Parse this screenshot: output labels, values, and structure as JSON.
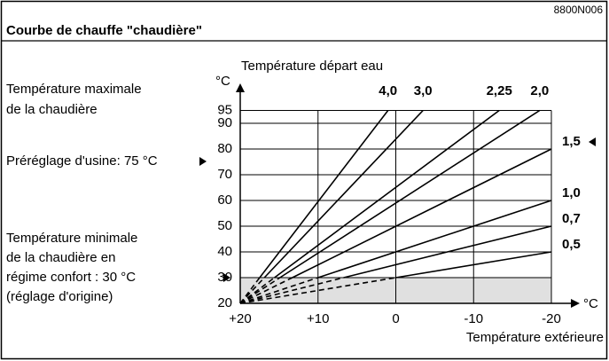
{
  "doc_id": "8800N006",
  "heading": "Courbe de chauffe \"chaudière\"",
  "notes": {
    "max_temp": [
      "Température maximale",
      "de la chaudière"
    ],
    "factory_preset": "Préréglage d'usine: 75 °C",
    "min_temp": [
      "Température minimale",
      "de la chaudière en",
      "régime confort : 30 °C",
      "(réglage d'origine)"
    ]
  },
  "chart_data": {
    "type": "line",
    "y_label": "Température départ eau",
    "y_unit": "°C",
    "x_label": "Température extérieure",
    "x_unit": "°C",
    "xlim": [
      20,
      -20
    ],
    "xticks": [
      {
        "value": 20,
        "label": "+20"
      },
      {
        "value": 10,
        "label": "+10"
      },
      0,
      -10,
      -20
    ],
    "ylim": [
      20,
      95
    ],
    "yticks": [
      20,
      30,
      40,
      50,
      60,
      70,
      80,
      90,
      95
    ],
    "grid": true,
    "shaded_range": [
      20,
      30
    ],
    "color": "#000000",
    "series": [
      {
        "name": "4,0",
        "x": [
          20,
          17.5,
          1
        ],
        "values": [
          20,
          30,
          95
        ]
      },
      {
        "name": "3,0",
        "x": [
          20,
          16.9,
          -3.5
        ],
        "values": [
          20,
          30,
          95
        ]
      },
      {
        "name": "2,25",
        "x": [
          20,
          15.6,
          -13.3
        ],
        "values": [
          20,
          30,
          95
        ]
      },
      {
        "name": "2,0",
        "x": [
          20,
          14.9,
          -18.5
        ],
        "values": [
          20,
          30,
          95
        ]
      },
      {
        "name": "1,5",
        "x": [
          20,
          13.3,
          -20
        ],
        "values": [
          20,
          30,
          80
        ]
      },
      {
        "name": "1,0",
        "x": [
          20,
          10,
          -20
        ],
        "values": [
          20,
          30,
          60
        ]
      },
      {
        "name": "0,7",
        "x": [
          20,
          6.7,
          -20
        ],
        "values": [
          20,
          30,
          50
        ]
      },
      {
        "name": "0,5",
        "x": [
          20,
          0,
          -20
        ],
        "values": [
          20,
          30,
          40
        ]
      }
    ]
  }
}
